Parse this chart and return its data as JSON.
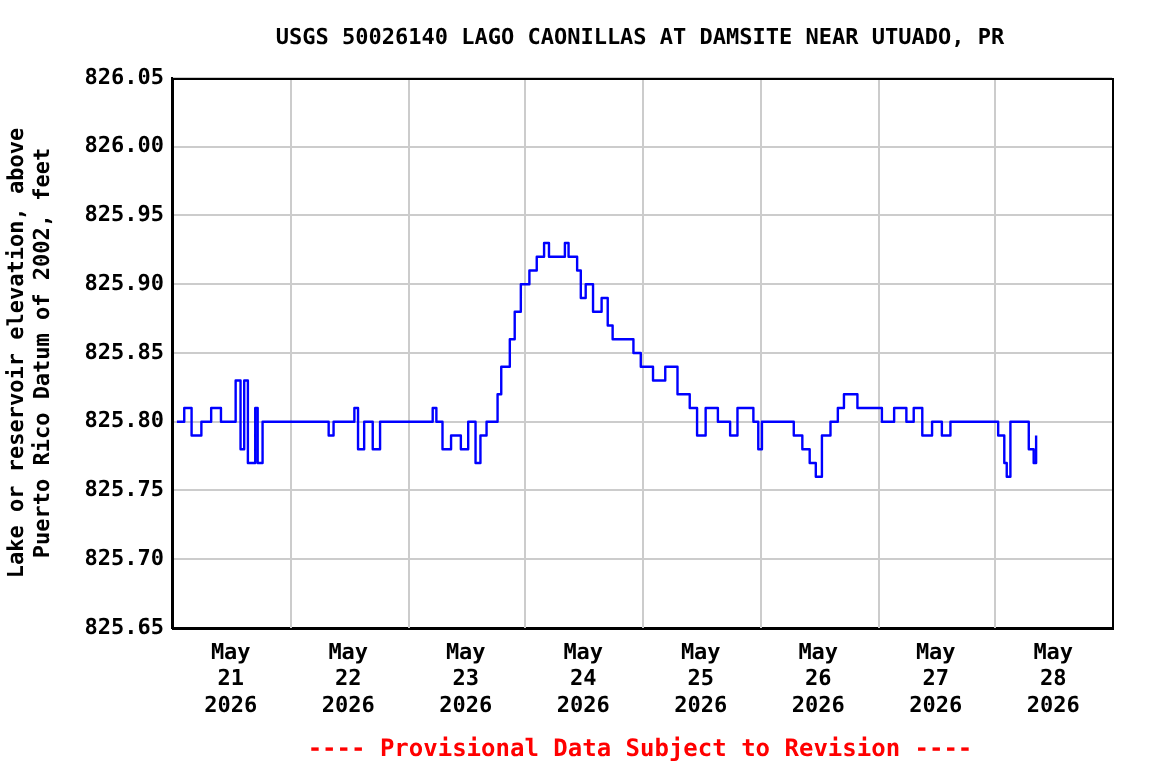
{
  "chart_data": {
    "type": "step",
    "title": "USGS 50026140 LAGO CAONILLAS AT DAMSITE NEAR UTUADO, PR",
    "ylabel": "Lake or reservoir elevation, above Puerto Rico Datum of 2002, feet",
    "annotations": [
      "---- Provisional Data Subject to Revision ----"
    ],
    "x": [
      "2026-05-21T01:00",
      "2026-05-21T02:30",
      "2026-05-21T04:00",
      "2026-05-21T06:00",
      "2026-05-21T08:00",
      "2026-05-21T10:00",
      "2026-05-21T13:00",
      "2026-05-21T14:00",
      "2026-05-21T14:45",
      "2026-05-21T15:30",
      "2026-05-21T17:00",
      "2026-05-21T17:30",
      "2026-05-21T18:30",
      "2026-05-22T08:00",
      "2026-05-22T09:00",
      "2026-05-22T13:15",
      "2026-05-22T14:00",
      "2026-05-22T15:15",
      "2026-05-22T17:00",
      "2026-05-22T18:30",
      "2026-05-23T05:15",
      "2026-05-23T06:00",
      "2026-05-23T07:15",
      "2026-05-23T09:00",
      "2026-05-23T11:00",
      "2026-05-23T12:30",
      "2026-05-23T14:00",
      "2026-05-23T15:00",
      "2026-05-23T16:15",
      "2026-05-23T18:30",
      "2026-05-23T19:15",
      "2026-05-23T21:00",
      "2026-05-23T22:00",
      "2026-05-23T23:15",
      "2026-05-24T01:00",
      "2026-05-24T02:30",
      "2026-05-24T04:00",
      "2026-05-24T05:00",
      "2026-05-24T08:15",
      "2026-05-24T09:00",
      "2026-05-24T10:45",
      "2026-05-24T11:30",
      "2026-05-24T12:30",
      "2026-05-24T14:00",
      "2026-05-24T15:45",
      "2026-05-24T17:00",
      "2026-05-24T18:00",
      "2026-05-24T21:30",
      "2026-05-24T22:15",
      "2026-05-24T23:45",
      "2026-05-25T02:15",
      "2026-05-25T04:45",
      "2026-05-25T07:15",
      "2026-05-25T09:45",
      "2026-05-25T11:15",
      "2026-05-25T13:00",
      "2026-05-25T15:30",
      "2026-05-25T18:00",
      "2026-05-25T19:30",
      "2026-05-25T22:45",
      "2026-05-25T23:45",
      "2026-05-26T00:30",
      "2026-05-26T07:00",
      "2026-05-26T08:45",
      "2026-05-26T10:15",
      "2026-05-26T11:30",
      "2026-05-26T12:45",
      "2026-05-26T14:30",
      "2026-05-26T16:00",
      "2026-05-26T17:15",
      "2026-05-26T20:00",
      "2026-05-27T00:15",
      "2026-05-27T01:00",
      "2026-05-27T03:30",
      "2026-05-27T06:00",
      "2026-05-27T07:30",
      "2026-05-27T09:15",
      "2026-05-27T11:15",
      "2026-05-27T13:15",
      "2026-05-27T15:00",
      "2026-05-28T00:45",
      "2026-05-28T02:00",
      "2026-05-28T02:30",
      "2026-05-28T03:15",
      "2026-05-28T06:30",
      "2026-05-28T07:00",
      "2026-05-28T08:00",
      "2026-05-28T08:30"
    ],
    "series": [
      {
        "color": "#0000ff",
        "values": [
          825.8,
          825.81,
          825.79,
          825.8,
          825.81,
          825.8,
          825.83,
          825.78,
          825.83,
          825.77,
          825.81,
          825.77,
          825.8,
          825.79,
          825.8,
          825.81,
          825.78,
          825.8,
          825.78,
          825.8,
          825.81,
          825.8,
          825.78,
          825.79,
          825.78,
          825.8,
          825.77,
          825.79,
          825.8,
          825.82,
          825.84,
          825.86,
          825.88,
          825.9,
          825.91,
          825.92,
          825.93,
          825.92,
          825.93,
          825.92,
          825.91,
          825.89,
          825.9,
          825.88,
          825.89,
          825.87,
          825.86,
          825.86,
          825.85,
          825.84,
          825.83,
          825.84,
          825.82,
          825.81,
          825.79,
          825.81,
          825.8,
          825.79,
          825.81,
          825.8,
          825.78,
          825.8,
          825.79,
          825.78,
          825.77,
          825.76,
          825.79,
          825.8,
          825.81,
          825.82,
          825.81,
          825.81,
          825.8,
          825.81,
          825.8,
          825.81,
          825.79,
          825.8,
          825.79,
          825.8,
          825.79,
          825.77,
          825.76,
          825.8,
          825.8,
          825.78,
          825.77,
          825.79
        ]
      }
    ],
    "xlim": [
      "2026-05-21T00:00",
      "2026-05-29T00:00"
    ],
    "xticks": [
      {
        "value": "2026-05-21T12:00",
        "label": "May\n21\n2026"
      },
      {
        "value": "2026-05-22T00:00",
        "label": null
      },
      {
        "value": "2026-05-22T12:00",
        "label": "May\n22\n2026"
      },
      {
        "value": "2026-05-23T00:00",
        "label": null
      },
      {
        "value": "2026-05-23T12:00",
        "label": "May\n23\n2026"
      },
      {
        "value": "2026-05-24T00:00",
        "label": null
      },
      {
        "value": "2026-05-24T12:00",
        "label": "May\n24\n2026"
      },
      {
        "value": "2026-05-25T00:00",
        "label": null
      },
      {
        "value": "2026-05-25T12:00",
        "label": "May\n25\n2026"
      },
      {
        "value": "2026-05-26T00:00",
        "label": null
      },
      {
        "value": "2026-05-26T12:00",
        "label": "May\n26\n2026"
      },
      {
        "value": "2026-05-27T00:00",
        "label": null
      },
      {
        "value": "2026-05-27T12:00",
        "label": "May\n27\n2026"
      },
      {
        "value": "2026-05-28T00:00",
        "label": null
      },
      {
        "value": "2026-05-28T12:00",
        "label": "May\n28\n2026"
      }
    ],
    "ylim": [
      825.65,
      826.05
    ],
    "yticks": [
      {
        "value": 825.65,
        "label": "825.65"
      },
      {
        "value": 825.7,
        "label": "825.70"
      },
      {
        "value": 825.75,
        "label": "825.75"
      },
      {
        "value": 825.8,
        "label": "825.80"
      },
      {
        "value": 825.85,
        "label": "825.85"
      },
      {
        "value": 825.9,
        "label": "825.90"
      },
      {
        "value": 825.95,
        "label": "825.95"
      },
      {
        "value": 826.0,
        "label": "826.00"
      },
      {
        "value": 826.05,
        "label": "826.05"
      }
    ],
    "grid": true,
    "legend": false
  }
}
